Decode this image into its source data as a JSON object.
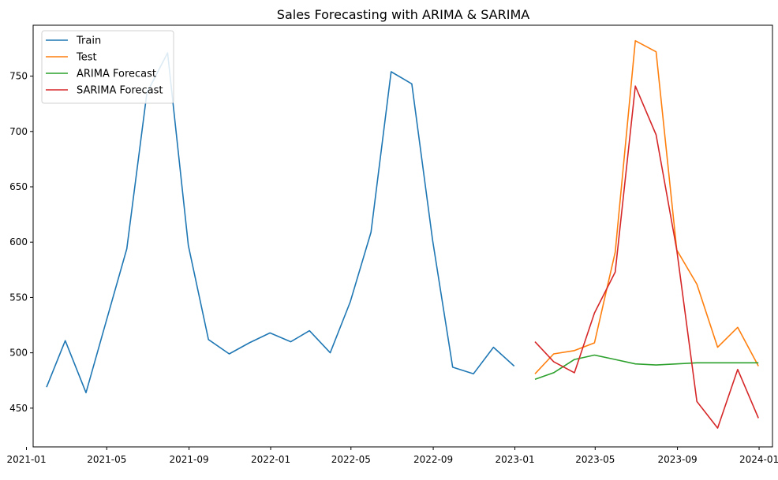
{
  "chart_data": {
    "type": "line",
    "title": "Sales Forecasting with ARIMA & SARIMA",
    "xlabel": "",
    "ylabel": "",
    "x_ticks": [
      "2021-01",
      "2021-05",
      "2021-09",
      "2022-01",
      "2022-05",
      "2022-09",
      "2023-01",
      "2023-05",
      "2023-09",
      "2024-01"
    ],
    "y_ticks": [
      450,
      500,
      550,
      600,
      650,
      700,
      750
    ],
    "xlim": [
      "2021-01-11",
      "2024-01-21"
    ],
    "ylim": [
      415,
      796
    ],
    "grid": false,
    "legend_position": "top-left",
    "series": [
      {
        "name": "Train",
        "color": "#1f77b4",
        "x": [
          "2021-01-31",
          "2021-02-28",
          "2021-03-31",
          "2021-04-30",
          "2021-05-31",
          "2021-06-30",
          "2021-07-31",
          "2021-08-31",
          "2021-09-30",
          "2021-10-31",
          "2021-11-30",
          "2021-12-31",
          "2022-01-31",
          "2022-02-28",
          "2022-03-31",
          "2022-04-30",
          "2022-05-31",
          "2022-06-30",
          "2022-07-31",
          "2022-08-31",
          "2022-09-30",
          "2022-10-31",
          "2022-11-30",
          "2022-12-31"
        ],
        "values": [
          469,
          511,
          464,
          528,
          594,
          735,
          771,
          597,
          512,
          499,
          509,
          518,
          510,
          520,
          500,
          546,
          609,
          754,
          743,
          602,
          487,
          481,
          505,
          488
        ]
      },
      {
        "name": "Test",
        "color": "#ff7f0e",
        "x": [
          "2023-01-31",
          "2023-02-28",
          "2023-03-31",
          "2023-04-30",
          "2023-05-31",
          "2023-06-30",
          "2023-07-31",
          "2023-08-31",
          "2023-09-30",
          "2023-10-31",
          "2023-11-30",
          "2023-12-31"
        ],
        "values": [
          481,
          499,
          502,
          509,
          591,
          782,
          772,
          593,
          562,
          505,
          523,
          488
        ]
      },
      {
        "name": "ARIMA Forecast",
        "color": "#2ca02c",
        "x": [
          "2023-01-31",
          "2023-02-28",
          "2023-03-31",
          "2023-04-30",
          "2023-05-31",
          "2023-06-30",
          "2023-07-31",
          "2023-08-31",
          "2023-09-30",
          "2023-10-31",
          "2023-11-30",
          "2023-12-31"
        ],
        "values": [
          476,
          482,
          494,
          498,
          494,
          490,
          489,
          490,
          491,
          491,
          491,
          491
        ]
      },
      {
        "name": "SARIMA Forecast",
        "color": "#d62728",
        "x": [
          "2023-01-31",
          "2023-02-28",
          "2023-03-31",
          "2023-04-30",
          "2023-05-31",
          "2023-06-30",
          "2023-07-31",
          "2023-08-31",
          "2023-09-30",
          "2023-10-31",
          "2023-11-30",
          "2023-12-31"
        ],
        "values": [
          510,
          492,
          482,
          536,
          573,
          741,
          697,
          593,
          456,
          432,
          485,
          441
        ]
      }
    ]
  }
}
